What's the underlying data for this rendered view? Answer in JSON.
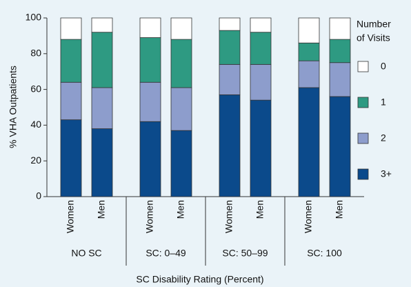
{
  "chart_data": {
    "type": "stacked_bar",
    "categories": [
      "Women",
      "Men",
      "Women",
      "Men",
      "Women",
      "Men",
      "Women",
      "Men"
    ],
    "groups": [
      "NO SC",
      "SC: 0–49",
      "SC: 50–99",
      "SC: 100"
    ],
    "series": [
      {
        "name": "0",
        "color": "#ffffff",
        "values": [
          12,
          8,
          11,
          12,
          7,
          8,
          14,
          12
        ]
      },
      {
        "name": "1",
        "color": "#2e9a82",
        "values": [
          24,
          31,
          25,
          27,
          19,
          18,
          10,
          13
        ]
      },
      {
        "name": "2",
        "color": "#8d9dcc",
        "values": [
          21,
          23,
          22,
          24,
          17,
          20,
          15,
          19
        ]
      },
      {
        "name": "3+",
        "color": "#0b4a8b",
        "values": [
          43,
          38,
          42,
          37,
          57,
          54,
          61,
          56
        ]
      }
    ],
    "ylabel": "% VHA Outpatients",
    "xlabel": "SC Disability Rating (Percent)",
    "legend_title": [
      "Number",
      "of Visits"
    ],
    "ylim": [
      0,
      100
    ],
    "yticks": [
      0,
      20,
      40,
      60,
      80,
      100
    ],
    "grid": false,
    "legend": "right"
  }
}
